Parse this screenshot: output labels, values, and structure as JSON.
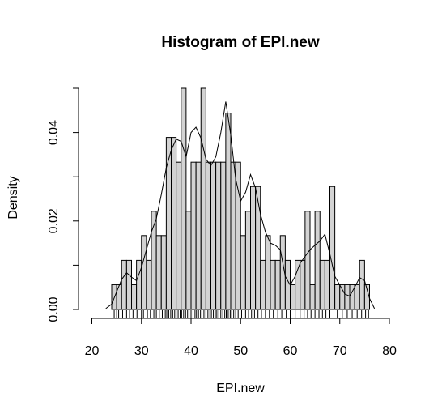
{
  "chart_data": {
    "type": "histogram",
    "title": "Histogram of EPI.new",
    "xlabel": "EPI.new",
    "ylabel": "Density",
    "xlim": [
      20,
      80
    ],
    "ylim": [
      0,
      0.05
    ],
    "x_ticks": [
      20,
      30,
      40,
      50,
      60,
      70,
      80
    ],
    "y_ticks": [
      0.0,
      0.02,
      0.04
    ],
    "y_tick_labels": [
      "0.00",
      "0.02",
      "0.04"
    ],
    "bin_width": 1,
    "bins_start": [
      24,
      25,
      26,
      27,
      28,
      29,
      30,
      31,
      32,
      33,
      34,
      35,
      36,
      37,
      38,
      39,
      40,
      41,
      42,
      43,
      44,
      45,
      46,
      47,
      48,
      49,
      50,
      51,
      52,
      53,
      54,
      55,
      56,
      57,
      58,
      59,
      60,
      61,
      62,
      63,
      64,
      65,
      66,
      67,
      68,
      69,
      70,
      71,
      72,
      73,
      74,
      75
    ],
    "densities": [
      0.0056,
      0.0056,
      0.0111,
      0.0111,
      0.0056,
      0.0111,
      0.0167,
      0.0111,
      0.0222,
      0.0167,
      0.0167,
      0.0389,
      0.0389,
      0.0333,
      0.05,
      0.0222,
      0.0333,
      0.0333,
      0.05,
      0.0333,
      0.0333,
      0.0333,
      0.0333,
      0.0444,
      0.0333,
      0.0333,
      0.0167,
      0.0222,
      0.0278,
      0.0278,
      0.0111,
      0.0167,
      0.0111,
      0.0111,
      0.0167,
      0.0111,
      0.0056,
      0.0111,
      0.0111,
      0.0222,
      0.0056,
      0.0222,
      0.0111,
      0.0111,
      0.0278,
      0.0056,
      0.0056,
      0.0056,
      0.0056,
      0.0056,
      0.0111,
      0.0056
    ],
    "density_curve": {
      "x": [
        22.8,
        24,
        25,
        26,
        27,
        28,
        29,
        30,
        31,
        32,
        33,
        34,
        35,
        36,
        37,
        38,
        39,
        40,
        41,
        42,
        43,
        44,
        45,
        46,
        47,
        48,
        49,
        50,
        51,
        52,
        53,
        54,
        55,
        56,
        57,
        58,
        59,
        60,
        61,
        62,
        63,
        64,
        65,
        66,
        67,
        68,
        69,
        70,
        71,
        72,
        73,
        74,
        75,
        76,
        77
      ],
      "y": [
        0.0002,
        0.0012,
        0.004,
        0.0068,
        0.0083,
        0.0073,
        0.0065,
        0.0095,
        0.0135,
        0.0175,
        0.0205,
        0.026,
        0.032,
        0.036,
        0.0385,
        0.038,
        0.0345,
        0.04,
        0.0412,
        0.0387,
        0.034,
        0.0325,
        0.0345,
        0.04,
        0.047,
        0.0395,
        0.0295,
        0.0245,
        0.0265,
        0.0305,
        0.0275,
        0.0215,
        0.0175,
        0.015,
        0.0145,
        0.0135,
        0.0075,
        0.0055,
        0.0075,
        0.0105,
        0.012,
        0.0135,
        0.0145,
        0.0155,
        0.017,
        0.0125,
        0.0075,
        0.0055,
        0.0035,
        0.003,
        0.005,
        0.0072,
        0.0065,
        0.0025,
        0.0002
      ]
    },
    "rug": [
      24.5,
      25,
      25.4,
      26.2,
      27,
      27.6,
      28.3,
      29.1,
      30,
      30.4,
      31.2,
      31.8,
      32.5,
      33,
      33.6,
      34.2,
      34.8,
      35.1,
      35.5,
      35.9,
      36.3,
      36.7,
      37,
      37.4,
      37.8,
      38.1,
      38.5,
      38.9,
      39.3,
      39.6,
      40,
      40.4,
      40.8,
      41.1,
      41.5,
      41.9,
      42.2,
      42.6,
      43,
      43.4,
      43.8,
      44.1,
      44.5,
      44.9,
      45.2,
      45.6,
      46,
      46.4,
      46.8,
      47.1,
      47.5,
      47.9,
      48.2,
      48.6,
      49,
      49.5,
      50.2,
      51,
      51.6,
      52.2,
      52.8,
      53.5,
      54.2,
      55,
      55.8,
      56.6,
      57.5,
      58.3,
      59.2,
      60,
      61,
      62,
      62.8,
      63.5,
      64.2,
      65,
      65.8,
      66.5,
      67.2,
      68,
      69.5,
      70.5,
      71.5,
      72.5,
      73.5,
      74.4,
      75.2,
      75.8
    ]
  }
}
